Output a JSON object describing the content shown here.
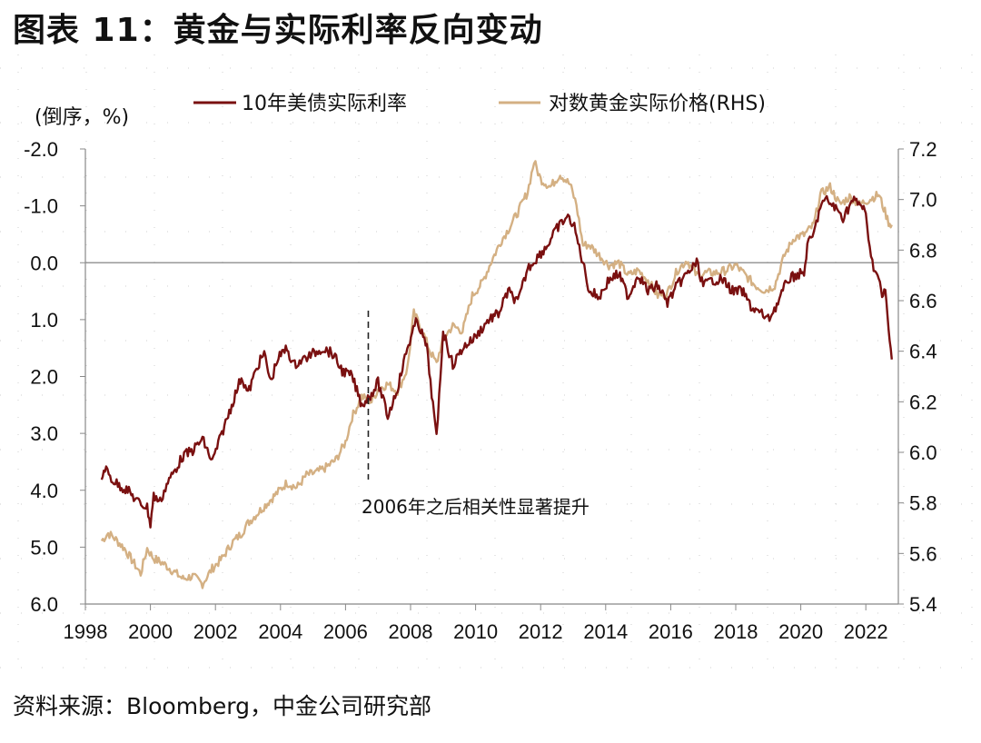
{
  "title": "图表 11：黄金与实际利率反向变动",
  "source": "资料来源：Bloomberg，中金公司研究部",
  "chart_data": {
    "type": "line",
    "left_axis_label": "(倒序，%)",
    "annotation": "2006年之后相关性显著提升",
    "annotation_x": 2006.7,
    "x_ticks": [
      "1998",
      "2000",
      "2002",
      "2004",
      "2006",
      "2008",
      "2010",
      "2012",
      "2014",
      "2016",
      "2018",
      "2020",
      "2022"
    ],
    "xlim": [
      1998,
      2023
    ],
    "y_left": {
      "inverted": true,
      "range": [
        -2.0,
        6.0
      ],
      "ticks": [
        "-2.0",
        "-1.0",
        "0.0",
        "1.0",
        "2.0",
        "3.0",
        "4.0",
        "5.0",
        "6.0"
      ]
    },
    "y_right": {
      "range": [
        5.4,
        7.2
      ],
      "ticks": [
        "5.4",
        "5.6",
        "5.8",
        "6.0",
        "6.2",
        "6.4",
        "6.6",
        "6.8",
        "7.0",
        "7.2"
      ]
    },
    "colors": {
      "real_rate": "#7a1010",
      "gold": "#d4b083",
      "zero_line": "#999999",
      "axis": "#888888"
    },
    "series": [
      {
        "name": "10年美债实际利率",
        "axis": "left",
        "x": [
          1998.5,
          1998.6,
          1998.8,
          1999.0,
          1999.3,
          1999.6,
          1999.9,
          2000.0,
          2000.1,
          2000.3,
          2000.5,
          2000.8,
          2001.0,
          2001.3,
          2001.6,
          2001.9,
          2002.2,
          2002.5,
          2002.8,
          2003.0,
          2003.3,
          2003.5,
          2003.7,
          2003.9,
          2004.2,
          2004.4,
          2004.7,
          2005.0,
          2005.3,
          2005.6,
          2005.9,
          2006.2,
          2006.5,
          2006.8,
          2007.0,
          2007.3,
          2007.6,
          2007.9,
          2008.2,
          2008.5,
          2008.8,
          2009.0,
          2009.3,
          2009.6,
          2010.0,
          2010.4,
          2010.7,
          2011.0,
          2011.3,
          2011.6,
          2011.9,
          2012.2,
          2012.5,
          2012.8,
          2013.0,
          2013.3,
          2013.5,
          2013.8,
          2014.1,
          2014.4,
          2014.7,
          2015.0,
          2015.3,
          2015.6,
          2015.9,
          2016.2,
          2016.5,
          2016.8,
          2017.0,
          2017.3,
          2017.6,
          2017.9,
          2018.2,
          2018.5,
          2018.8,
          2019.0,
          2019.3,
          2019.6,
          2019.9,
          2020.1,
          2020.2,
          2020.4,
          2020.6,
          2020.8,
          2021.0,
          2021.3,
          2021.6,
          2021.9,
          2022.0,
          2022.2,
          2022.4,
          2022.5,
          2022.6,
          2022.7,
          2022.8
        ],
        "values": [
          3.8,
          3.6,
          3.8,
          3.9,
          4.0,
          4.2,
          4.3,
          4.6,
          4.1,
          4.2,
          3.9,
          3.6,
          3.4,
          3.3,
          3.1,
          3.5,
          3.0,
          2.5,
          2.0,
          2.3,
          1.8,
          1.6,
          2.1,
          1.7,
          1.5,
          1.8,
          1.7,
          1.6,
          1.5,
          1.6,
          1.9,
          2.0,
          2.5,
          2.3,
          2.1,
          2.7,
          2.2,
          1.5,
          1.0,
          1.5,
          3.1,
          1.2,
          1.8,
          1.5,
          1.3,
          1.0,
          0.9,
          0.5,
          0.7,
          0.1,
          -0.1,
          -0.3,
          -0.6,
          -0.8,
          -0.7,
          0.0,
          0.5,
          0.6,
          0.3,
          0.2,
          0.6,
          0.2,
          0.5,
          0.4,
          0.7,
          0.4,
          0.2,
          0.0,
          0.4,
          0.3,
          0.3,
          0.5,
          0.5,
          0.8,
          0.9,
          1.0,
          0.7,
          0.3,
          0.2,
          0.2,
          -0.3,
          -0.5,
          -1.0,
          -1.1,
          -1.0,
          -0.8,
          -1.1,
          -1.0,
          -0.8,
          0.0,
          0.3,
          0.6,
          0.5,
          1.2,
          1.7
        ]
      },
      {
        "name": "对数黄金实际价格(RHS)",
        "axis": "right",
        "x": [
          1998.5,
          1998.7,
          1998.9,
          1999.2,
          1999.5,
          1999.7,
          1999.9,
          2000.1,
          2000.4,
          2000.7,
          2001.0,
          2001.3,
          2001.6,
          2001.9,
          2002.2,
          2002.5,
          2002.8,
          2003.0,
          2003.3,
          2003.6,
          2003.9,
          2004.2,
          2004.5,
          2004.8,
          2005.1,
          2005.4,
          2005.7,
          2006.0,
          2006.2,
          2006.5,
          2006.8,
          2007.0,
          2007.3,
          2007.6,
          2007.9,
          2008.1,
          2008.3,
          2008.6,
          2008.8,
          2009.0,
          2009.3,
          2009.6,
          2009.9,
          2010.2,
          2010.5,
          2010.8,
          2011.0,
          2011.3,
          2011.6,
          2011.8,
          2012.0,
          2012.3,
          2012.6,
          2012.9,
          2013.1,
          2013.3,
          2013.5,
          2013.8,
          2014.1,
          2014.4,
          2014.7,
          2015.0,
          2015.3,
          2015.6,
          2015.9,
          2016.2,
          2016.5,
          2016.8,
          2017.1,
          2017.4,
          2017.7,
          2018.0,
          2018.3,
          2018.6,
          2018.9,
          2019.2,
          2019.5,
          2019.8,
          2020.1,
          2020.4,
          2020.6,
          2020.9,
          2021.2,
          2021.5,
          2021.8,
          2022.1,
          2022.4,
          2022.7,
          2022.8
        ],
        "values": [
          5.65,
          5.68,
          5.66,
          5.62,
          5.56,
          5.52,
          5.62,
          5.58,
          5.56,
          5.53,
          5.5,
          5.51,
          5.48,
          5.54,
          5.58,
          5.64,
          5.68,
          5.72,
          5.76,
          5.8,
          5.84,
          5.88,
          5.86,
          5.91,
          5.92,
          5.94,
          5.97,
          6.04,
          6.14,
          6.22,
          6.2,
          6.25,
          6.27,
          6.24,
          6.33,
          6.55,
          6.5,
          6.4,
          6.35,
          6.45,
          6.5,
          6.48,
          6.62,
          6.67,
          6.76,
          6.84,
          6.88,
          6.95,
          7.03,
          7.15,
          7.08,
          7.05,
          7.1,
          7.06,
          6.98,
          6.82,
          6.82,
          6.78,
          6.74,
          6.75,
          6.7,
          6.72,
          6.68,
          6.62,
          6.63,
          6.72,
          6.76,
          6.7,
          6.71,
          6.71,
          6.72,
          6.74,
          6.7,
          6.66,
          6.64,
          6.66,
          6.78,
          6.85,
          6.86,
          6.9,
          7.02,
          7.05,
          6.98,
          7.01,
          6.98,
          7.0,
          7.02,
          6.91,
          6.9
        ]
      }
    ]
  }
}
